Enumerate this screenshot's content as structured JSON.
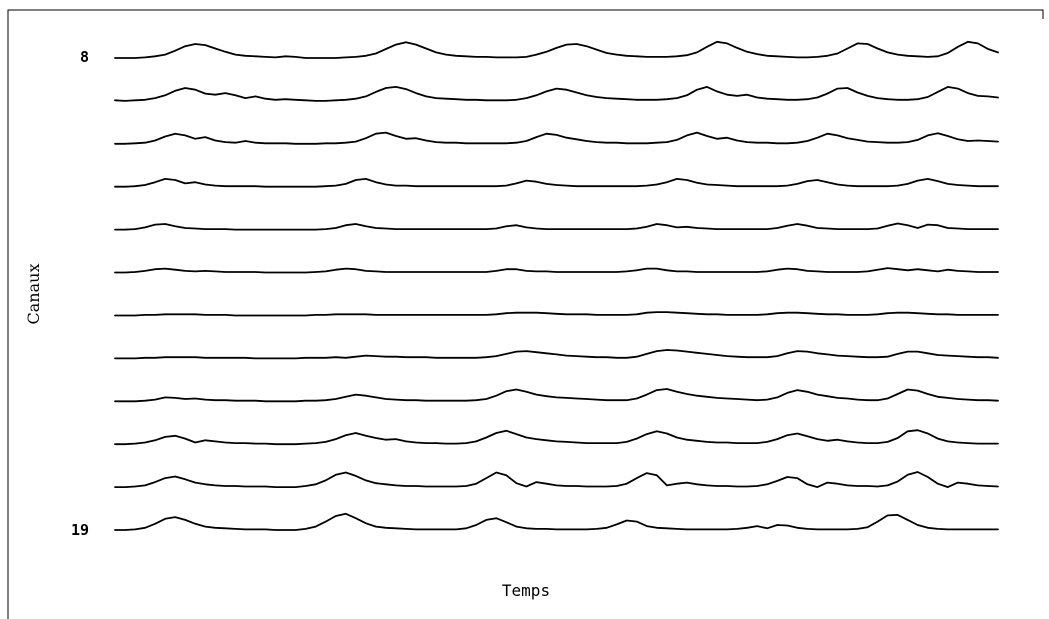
{
  "chart_data": {
    "type": "line",
    "xlabel": "Temps",
    "ylabel": "Canaux",
    "channel_tick_labels": [
      "8",
      "19"
    ],
    "x": [
      0,
      1,
      2,
      3,
      4,
      5,
      6,
      7,
      8,
      9,
      10,
      11,
      12,
      13,
      14,
      15,
      16,
      17,
      18,
      19,
      20,
      21,
      22,
      23,
      24,
      25,
      26,
      27,
      28,
      29,
      30,
      31,
      32,
      33,
      34,
      35,
      36,
      37,
      38,
      39,
      40,
      41,
      42,
      43,
      44,
      45,
      46,
      47,
      48,
      49,
      50,
      51,
      52,
      53,
      54,
      55,
      56,
      57,
      58,
      59,
      60,
      61,
      62,
      63,
      64,
      65,
      66,
      67,
      68,
      69,
      70,
      71,
      72,
      73,
      74,
      75,
      76,
      77,
      78,
      79,
      80,
      81,
      82,
      83,
      84,
      85,
      86,
      87,
      88
    ],
    "series": [
      {
        "values": [
          0.0,
          0.0,
          0.0,
          0.02,
          0.06,
          0.12,
          0.26,
          0.42,
          0.5,
          0.46,
          0.34,
          0.22,
          0.12,
          0.08,
          0.06,
          0.04,
          0.02,
          0.06,
          0.04,
          0.0,
          0.0,
          0.0,
          0.0,
          0.02,
          0.04,
          0.08,
          0.16,
          0.32,
          0.48,
          0.56,
          0.48,
          0.34,
          0.2,
          0.12,
          0.08,
          0.06,
          0.04,
          0.04,
          0.02,
          0.02,
          0.02,
          0.04,
          0.12,
          0.22,
          0.36,
          0.48,
          0.5,
          0.42,
          0.3,
          0.18,
          0.12,
          0.08,
          0.06,
          0.04,
          0.04,
          0.04,
          0.06,
          0.1,
          0.2,
          0.4,
          0.58,
          0.52,
          0.36,
          0.22,
          0.14,
          0.08,
          0.06,
          0.04,
          0.02,
          0.02,
          0.04,
          0.08,
          0.16,
          0.34,
          0.52,
          0.5,
          0.34,
          0.2,
          0.12,
          0.08,
          0.06,
          0.04,
          0.06,
          0.18,
          0.4,
          0.58,
          0.52,
          0.32,
          0.2
        ]
      },
      {
        "values": [
          0.02,
          0.0,
          0.02,
          0.04,
          0.1,
          0.2,
          0.36,
          0.46,
          0.4,
          0.26,
          0.22,
          0.28,
          0.2,
          0.1,
          0.16,
          0.08,
          0.04,
          0.06,
          0.04,
          0.02,
          0.0,
          0.0,
          0.02,
          0.04,
          0.08,
          0.16,
          0.32,
          0.46,
          0.5,
          0.42,
          0.28,
          0.16,
          0.1,
          0.08,
          0.06,
          0.04,
          0.04,
          0.02,
          0.02,
          0.02,
          0.04,
          0.1,
          0.2,
          0.34,
          0.44,
          0.4,
          0.3,
          0.2,
          0.14,
          0.1,
          0.08,
          0.06,
          0.04,
          0.04,
          0.04,
          0.06,
          0.1,
          0.2,
          0.4,
          0.5,
          0.34,
          0.22,
          0.18,
          0.22,
          0.12,
          0.08,
          0.06,
          0.04,
          0.04,
          0.06,
          0.12,
          0.26,
          0.44,
          0.46,
          0.3,
          0.18,
          0.1,
          0.06,
          0.04,
          0.04,
          0.06,
          0.14,
          0.32,
          0.5,
          0.44,
          0.28,
          0.18,
          0.16,
          0.12
        ]
      },
      {
        "values": [
          0.0,
          0.0,
          0.02,
          0.04,
          0.12,
          0.26,
          0.36,
          0.3,
          0.18,
          0.24,
          0.12,
          0.06,
          0.04,
          0.1,
          0.04,
          0.02,
          0.02,
          0.02,
          0.0,
          0.0,
          0.0,
          0.02,
          0.02,
          0.04,
          0.08,
          0.2,
          0.36,
          0.4,
          0.28,
          0.18,
          0.2,
          0.12,
          0.06,
          0.04,
          0.04,
          0.02,
          0.02,
          0.02,
          0.02,
          0.02,
          0.04,
          0.1,
          0.24,
          0.36,
          0.32,
          0.22,
          0.16,
          0.1,
          0.06,
          0.04,
          0.04,
          0.02,
          0.02,
          0.02,
          0.04,
          0.06,
          0.14,
          0.3,
          0.4,
          0.28,
          0.18,
          0.22,
          0.12,
          0.06,
          0.04,
          0.04,
          0.02,
          0.02,
          0.04,
          0.1,
          0.22,
          0.36,
          0.3,
          0.2,
          0.14,
          0.08,
          0.06,
          0.04,
          0.04,
          0.06,
          0.14,
          0.3,
          0.38,
          0.28,
          0.16,
          0.1,
          0.12,
          0.1,
          0.08
        ]
      },
      {
        "values": [
          0.0,
          0.0,
          0.02,
          0.06,
          0.16,
          0.28,
          0.24,
          0.12,
          0.16,
          0.08,
          0.04,
          0.02,
          0.02,
          0.02,
          0.02,
          0.0,
          0.0,
          0.0,
          0.0,
          0.0,
          0.0,
          0.02,
          0.04,
          0.1,
          0.24,
          0.28,
          0.16,
          0.08,
          0.04,
          0.04,
          0.02,
          0.02,
          0.02,
          0.02,
          0.02,
          0.02,
          0.02,
          0.02,
          0.02,
          0.04,
          0.12,
          0.22,
          0.18,
          0.1,
          0.06,
          0.04,
          0.02,
          0.02,
          0.02,
          0.02,
          0.02,
          0.02,
          0.02,
          0.04,
          0.08,
          0.16,
          0.28,
          0.24,
          0.14,
          0.08,
          0.06,
          0.04,
          0.02,
          0.02,
          0.02,
          0.02,
          0.02,
          0.04,
          0.1,
          0.2,
          0.24,
          0.16,
          0.08,
          0.04,
          0.02,
          0.02,
          0.02,
          0.02,
          0.04,
          0.1,
          0.22,
          0.28,
          0.2,
          0.1,
          0.06,
          0.04,
          0.02,
          0.02,
          0.02
        ]
      },
      {
        "values": [
          0.0,
          0.0,
          0.02,
          0.08,
          0.18,
          0.2,
          0.12,
          0.06,
          0.04,
          0.02,
          0.02,
          0.02,
          0.0,
          0.0,
          0.0,
          0.0,
          0.0,
          0.0,
          0.0,
          0.0,
          0.0,
          0.02,
          0.06,
          0.16,
          0.2,
          0.12,
          0.06,
          0.04,
          0.02,
          0.02,
          0.02,
          0.02,
          0.02,
          0.02,
          0.02,
          0.02,
          0.02,
          0.02,
          0.04,
          0.12,
          0.16,
          0.08,
          0.04,
          0.02,
          0.02,
          0.02,
          0.02,
          0.02,
          0.02,
          0.02,
          0.02,
          0.02,
          0.04,
          0.1,
          0.2,
          0.16,
          0.08,
          0.1,
          0.06,
          0.04,
          0.02,
          0.02,
          0.02,
          0.02,
          0.02,
          0.02,
          0.06,
          0.14,
          0.2,
          0.14,
          0.06,
          0.04,
          0.02,
          0.02,
          0.02,
          0.02,
          0.04,
          0.14,
          0.22,
          0.16,
          0.06,
          0.18,
          0.16,
          0.06,
          0.04,
          0.02,
          0.02,
          0.02,
          0.02
        ]
      },
      {
        "values": [
          0.0,
          0.0,
          0.02,
          0.06,
          0.12,
          0.14,
          0.1,
          0.06,
          0.04,
          0.06,
          0.04,
          0.02,
          0.02,
          0.02,
          0.02,
          0.0,
          0.0,
          0.0,
          0.0,
          0.0,
          0.02,
          0.04,
          0.1,
          0.14,
          0.12,
          0.06,
          0.04,
          0.02,
          0.02,
          0.02,
          0.02,
          0.02,
          0.02,
          0.02,
          0.02,
          0.02,
          0.02,
          0.02,
          0.06,
          0.12,
          0.12,
          0.06,
          0.04,
          0.04,
          0.02,
          0.02,
          0.02,
          0.02,
          0.02,
          0.02,
          0.02,
          0.04,
          0.08,
          0.14,
          0.14,
          0.08,
          0.04,
          0.04,
          0.02,
          0.02,
          0.02,
          0.02,
          0.02,
          0.02,
          0.02,
          0.04,
          0.1,
          0.14,
          0.12,
          0.06,
          0.04,
          0.02,
          0.02,
          0.02,
          0.02,
          0.04,
          0.1,
          0.16,
          0.12,
          0.08,
          0.12,
          0.08,
          0.04,
          0.1,
          0.06,
          0.04,
          0.02,
          0.02,
          0.02
        ]
      },
      {
        "values": [
          0.0,
          0.0,
          0.0,
          0.02,
          0.02,
          0.04,
          0.04,
          0.04,
          0.04,
          0.02,
          0.02,
          0.02,
          0.0,
          0.0,
          0.0,
          0.0,
          0.0,
          0.0,
          0.0,
          0.0,
          0.02,
          0.02,
          0.04,
          0.04,
          0.04,
          0.04,
          0.02,
          0.02,
          0.02,
          0.02,
          0.02,
          0.02,
          0.02,
          0.02,
          0.02,
          0.02,
          0.02,
          0.02,
          0.04,
          0.08,
          0.1,
          0.1,
          0.1,
          0.08,
          0.06,
          0.04,
          0.04,
          0.04,
          0.02,
          0.02,
          0.02,
          0.02,
          0.04,
          0.1,
          0.12,
          0.12,
          0.1,
          0.08,
          0.06,
          0.04,
          0.04,
          0.02,
          0.02,
          0.02,
          0.02,
          0.04,
          0.08,
          0.1,
          0.1,
          0.08,
          0.06,
          0.04,
          0.04,
          0.02,
          0.02,
          0.02,
          0.04,
          0.08,
          0.1,
          0.1,
          0.08,
          0.06,
          0.04,
          0.04,
          0.02,
          0.02,
          0.02,
          0.02,
          0.02
        ]
      },
      {
        "values": [
          0.0,
          0.0,
          0.0,
          0.02,
          0.02,
          0.04,
          0.04,
          0.04,
          0.04,
          0.02,
          0.02,
          0.02,
          0.02,
          0.02,
          0.0,
          0.0,
          0.0,
          0.0,
          0.0,
          0.02,
          0.02,
          0.02,
          0.04,
          0.02,
          0.06,
          0.1,
          0.08,
          0.06,
          0.06,
          0.04,
          0.04,
          0.04,
          0.02,
          0.02,
          0.02,
          0.02,
          0.02,
          0.04,
          0.08,
          0.16,
          0.24,
          0.26,
          0.22,
          0.18,
          0.14,
          0.1,
          0.08,
          0.06,
          0.04,
          0.04,
          0.02,
          0.02,
          0.06,
          0.16,
          0.26,
          0.3,
          0.28,
          0.24,
          0.2,
          0.16,
          0.12,
          0.08,
          0.06,
          0.04,
          0.04,
          0.04,
          0.08,
          0.18,
          0.26,
          0.24,
          0.18,
          0.14,
          0.1,
          0.08,
          0.06,
          0.04,
          0.04,
          0.06,
          0.16,
          0.24,
          0.24,
          0.18,
          0.12,
          0.1,
          0.08,
          0.06,
          0.04,
          0.04,
          0.02
        ]
      },
      {
        "values": [
          0.0,
          0.0,
          0.0,
          0.02,
          0.06,
          0.14,
          0.12,
          0.08,
          0.1,
          0.06,
          0.04,
          0.04,
          0.02,
          0.02,
          0.02,
          0.0,
          0.0,
          0.0,
          0.0,
          0.02,
          0.02,
          0.04,
          0.08,
          0.16,
          0.24,
          0.2,
          0.14,
          0.08,
          0.06,
          0.04,
          0.04,
          0.02,
          0.02,
          0.02,
          0.02,
          0.02,
          0.04,
          0.08,
          0.2,
          0.36,
          0.42,
          0.34,
          0.24,
          0.18,
          0.14,
          0.12,
          0.1,
          0.08,
          0.06,
          0.04,
          0.04,
          0.04,
          0.1,
          0.24,
          0.4,
          0.44,
          0.34,
          0.26,
          0.2,
          0.16,
          0.12,
          0.1,
          0.08,
          0.06,
          0.04,
          0.06,
          0.14,
          0.3,
          0.4,
          0.34,
          0.24,
          0.18,
          0.12,
          0.1,
          0.06,
          0.04,
          0.04,
          0.1,
          0.26,
          0.42,
          0.38,
          0.26,
          0.16,
          0.12,
          0.08,
          0.06,
          0.04,
          0.04,
          0.02
        ]
      },
      {
        "values": [
          0.0,
          0.0,
          0.02,
          0.06,
          0.14,
          0.26,
          0.3,
          0.2,
          0.06,
          0.14,
          0.1,
          0.06,
          0.04,
          0.04,
          0.02,
          0.02,
          0.0,
          0.0,
          0.0,
          0.02,
          0.04,
          0.08,
          0.18,
          0.32,
          0.4,
          0.3,
          0.22,
          0.16,
          0.18,
          0.1,
          0.06,
          0.04,
          0.04,
          0.02,
          0.02,
          0.04,
          0.1,
          0.24,
          0.4,
          0.48,
          0.36,
          0.24,
          0.18,
          0.14,
          0.1,
          0.08,
          0.06,
          0.04,
          0.04,
          0.04,
          0.04,
          0.08,
          0.2,
          0.36,
          0.46,
          0.38,
          0.24,
          0.16,
          0.12,
          0.08,
          0.06,
          0.06,
          0.04,
          0.04,
          0.04,
          0.08,
          0.18,
          0.32,
          0.38,
          0.28,
          0.18,
          0.12,
          0.16,
          0.1,
          0.06,
          0.04,
          0.04,
          0.08,
          0.22,
          0.46,
          0.5,
          0.38,
          0.2,
          0.1,
          0.06,
          0.04,
          0.02,
          0.02,
          0.02
        ]
      },
      {
        "values": [
          0.0,
          0.0,
          0.02,
          0.06,
          0.18,
          0.32,
          0.38,
          0.28,
          0.16,
          0.1,
          0.06,
          0.04,
          0.04,
          0.02,
          0.02,
          0.02,
          0.0,
          0.0,
          0.0,
          0.04,
          0.1,
          0.24,
          0.44,
          0.52,
          0.4,
          0.24,
          0.14,
          0.1,
          0.06,
          0.04,
          0.04,
          0.02,
          0.02,
          0.02,
          0.02,
          0.04,
          0.12,
          0.32,
          0.52,
          0.42,
          0.14,
          0.02,
          0.18,
          0.12,
          0.06,
          0.04,
          0.04,
          0.02,
          0.02,
          0.02,
          0.04,
          0.12,
          0.32,
          0.5,
          0.42,
          0.06,
          0.12,
          0.16,
          0.1,
          0.06,
          0.04,
          0.04,
          0.02,
          0.02,
          0.04,
          0.1,
          0.22,
          0.36,
          0.32,
          0.1,
          0.0,
          0.16,
          0.12,
          0.06,
          0.04,
          0.04,
          0.02,
          0.06,
          0.2,
          0.44,
          0.54,
          0.36,
          0.12,
          0.0,
          0.16,
          0.12,
          0.06,
          0.04,
          0.02
        ]
      },
      {
        "values": [
          0.0,
          0.0,
          0.02,
          0.08,
          0.22,
          0.4,
          0.46,
          0.36,
          0.22,
          0.12,
          0.08,
          0.06,
          0.04,
          0.02,
          0.02,
          0.02,
          0.0,
          0.0,
          0.0,
          0.04,
          0.12,
          0.3,
          0.5,
          0.58,
          0.42,
          0.24,
          0.12,
          0.08,
          0.06,
          0.04,
          0.02,
          0.02,
          0.02,
          0.02,
          0.02,
          0.06,
          0.18,
          0.36,
          0.42,
          0.28,
          0.12,
          0.06,
          0.04,
          0.04,
          0.02,
          0.02,
          0.02,
          0.02,
          0.04,
          0.08,
          0.2,
          0.34,
          0.3,
          0.14,
          0.08,
          0.06,
          0.04,
          0.02,
          0.02,
          0.02,
          0.02,
          0.02,
          0.04,
          0.08,
          0.14,
          0.06,
          0.18,
          0.16,
          0.08,
          0.04,
          0.02,
          0.02,
          0.02,
          0.02,
          0.04,
          0.1,
          0.3,
          0.52,
          0.54,
          0.36,
          0.18,
          0.08,
          0.04,
          0.02,
          0.02,
          0.02,
          0.02,
          0.02,
          0.02
        ]
      }
    ]
  }
}
